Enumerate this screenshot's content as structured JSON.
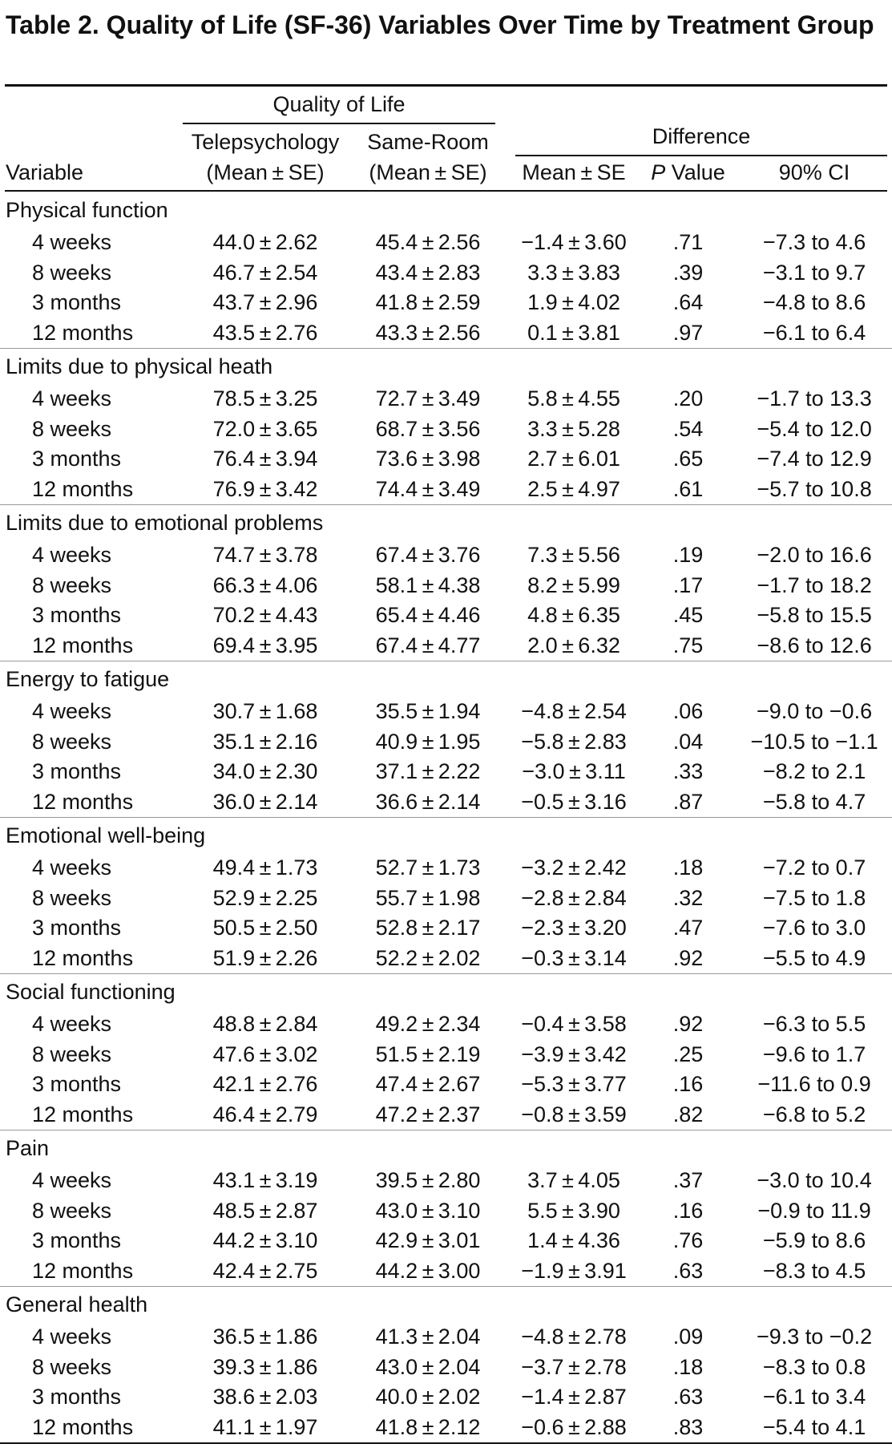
{
  "header": {
    "title": "Table 2. Quality of Life (SF-36) Variables Over Time by Treatment Group"
  },
  "columns": {
    "quality_of_life": "Quality of Life",
    "difference": "Difference",
    "variable": "Variable",
    "telepsychology": "Telepsychology",
    "telepsychology_unit": "(Mean ± SE)",
    "same_room": "Same-Room",
    "same_room_unit": "(Mean ± SE)",
    "mean_se": "Mean ± SE",
    "p_value": [
      "P",
      "Value"
    ],
    "ci": "90% CI"
  },
  "groups": [
    {
      "label": "Physical function",
      "rows": [
        [
          "4 weeks",
          "44.0 ± 2.62",
          "45.4 ± 2.56",
          "−1.4 ± 3.60",
          ".71",
          "−7.3 to 4.6"
        ],
        [
          "8 weeks",
          "46.7 ± 2.54",
          "43.4 ± 2.83",
          "3.3 ± 3.83",
          ".39",
          "−3.1 to 9.7"
        ],
        [
          "3 months",
          "43.7 ± 2.96",
          "41.8 ± 2.59",
          "1.9 ± 4.02",
          ".64",
          "−4.8 to 8.6"
        ],
        [
          "12 months",
          "43.5 ± 2.76",
          "43.3 ± 2.56",
          "0.1 ± 3.81",
          ".97",
          "−6.1 to 6.4"
        ]
      ]
    },
    {
      "label": "Limits due to physical heath",
      "rows": [
        [
          "4 weeks",
          "78.5 ± 3.25",
          "72.7 ± 3.49",
          "5.8 ± 4.55",
          ".20",
          "−1.7 to 13.3"
        ],
        [
          "8 weeks",
          "72.0 ± 3.65",
          "68.7 ± 3.56",
          "3.3 ± 5.28",
          ".54",
          "−5.4 to 12.0"
        ],
        [
          "3 months",
          "76.4 ± 3.94",
          "73.6 ± 3.98",
          "2.7 ± 6.01",
          ".65",
          "−7.4 to 12.9"
        ],
        [
          "12 months",
          "76.9 ± 3.42",
          "74.4 ± 3.49",
          "2.5 ± 4.97",
          ".61",
          "−5.7 to 10.8"
        ]
      ]
    },
    {
      "label": "Limits due to emotional problems",
      "rows": [
        [
          "4 weeks",
          "74.7 ± 3.78",
          "67.4 ± 3.76",
          "7.3 ± 5.56",
          ".19",
          "−2.0 to 16.6"
        ],
        [
          "8 weeks",
          "66.3 ± 4.06",
          "58.1 ± 4.38",
          "8.2 ± 5.99",
          ".17",
          "−1.7 to 18.2"
        ],
        [
          "3 months",
          "70.2 ± 4.43",
          "65.4 ± 4.46",
          "4.8 ± 6.35",
          ".45",
          "−5.8 to 15.5"
        ],
        [
          "12 months",
          "69.4 ± 3.95",
          "67.4 ± 4.77",
          "2.0 ± 6.32",
          ".75",
          "−8.6 to 12.6"
        ]
      ]
    },
    {
      "label": "Energy to fatigue",
      "rows": [
        [
          "4 weeks",
          "30.7 ± 1.68",
          "35.5 ± 1.94",
          "−4.8 ± 2.54",
          ".06",
          "−9.0 to −0.6"
        ],
        [
          "8 weeks",
          "35.1 ± 2.16",
          "40.9 ± 1.95",
          "−5.8 ± 2.83",
          ".04",
          "−10.5 to −1.1"
        ],
        [
          "3 months",
          "34.0 ± 2.30",
          "37.1 ± 2.22",
          "−3.0 ± 3.11",
          ".33",
          "−8.2 to 2.1"
        ],
        [
          "12 months",
          "36.0 ± 2.14",
          "36.6 ± 2.14",
          "−0.5 ± 3.16",
          ".87",
          "−5.8 to 4.7"
        ]
      ]
    },
    {
      "label": "Emotional well-being",
      "rows": [
        [
          "4 weeks",
          "49.4 ± 1.73",
          "52.7 ± 1.73",
          "−3.2 ± 2.42",
          ".18",
          "−7.2 to 0.7"
        ],
        [
          "8 weeks",
          "52.9 ± 2.25",
          "55.7 ± 1.98",
          "−2.8 ± 2.84",
          ".32",
          "−7.5 to 1.8"
        ],
        [
          "3 months",
          "50.5 ± 2.50",
          "52.8 ± 2.17",
          "−2.3 ± 3.20",
          ".47",
          "−7.6 to 3.0"
        ],
        [
          "12 months",
          "51.9 ± 2.26",
          "52.2 ± 2.02",
          "−0.3 ± 3.14",
          ".92",
          "−5.5 to 4.9"
        ]
      ]
    },
    {
      "label": "Social functioning",
      "rows": [
        [
          "4 weeks",
          "48.8 ± 2.84",
          "49.2 ± 2.34",
          "−0.4 ± 3.58",
          ".92",
          "−6.3 to 5.5"
        ],
        [
          "8 weeks",
          "47.6 ± 3.02",
          "51.5 ± 2.19",
          "−3.9 ± 3.42",
          ".25",
          "−9.6 to 1.7"
        ],
        [
          "3 months",
          "42.1 ± 2.76",
          "47.4 ± 2.67",
          "−5.3 ± 3.77",
          ".16",
          "−11.6 to 0.9"
        ],
        [
          "12 months",
          "46.4 ± 2.79",
          "47.2 ± 2.37",
          "−0.8 ± 3.59",
          ".82",
          "−6.8 to 5.2"
        ]
      ]
    },
    {
      "label": "Pain",
      "rows": [
        [
          "4 weeks",
          "43.1 ± 3.19",
          "39.5 ± 2.80",
          "3.7 ± 4.05",
          ".37",
          "−3.0 to 10.4"
        ],
        [
          "8 weeks",
          "48.5 ± 2.87",
          "43.0 ± 3.10",
          "5.5 ± 3.90",
          ".16",
          "−0.9 to 11.9"
        ],
        [
          "3 months",
          "44.2 ± 3.10",
          "42.9 ± 3.01",
          "1.4 ± 4.36",
          ".76",
          "−5.9 to 8.6"
        ],
        [
          "12 months",
          "42.4 ± 2.75",
          "44.2 ± 3.00",
          "−1.9 ± 3.91",
          ".63",
          "−8.3 to 4.5"
        ]
      ]
    },
    {
      "label": "General health",
      "rows": [
        [
          "4 weeks",
          "36.5 ± 1.86",
          "41.3 ± 2.04",
          "−4.8 ± 2.78",
          ".09",
          "−9.3 to −0.2"
        ],
        [
          "8 weeks",
          "39.3 ± 1.86",
          "43.0 ± 2.04",
          "−3.7 ± 2.78",
          ".18",
          "−8.3 to 0.8"
        ],
        [
          "3 months",
          "38.6 ± 2.03",
          "40.0 ± 2.02",
          "−1.4 ± 2.87",
          ".63",
          "−6.1 to 3.4"
        ],
        [
          "12 months",
          "41.1 ± 1.97",
          "41.8 ± 2.12",
          "−0.6 ± 2.88",
          ".83",
          "−5.4 to 4.1"
        ]
      ]
    }
  ]
}
